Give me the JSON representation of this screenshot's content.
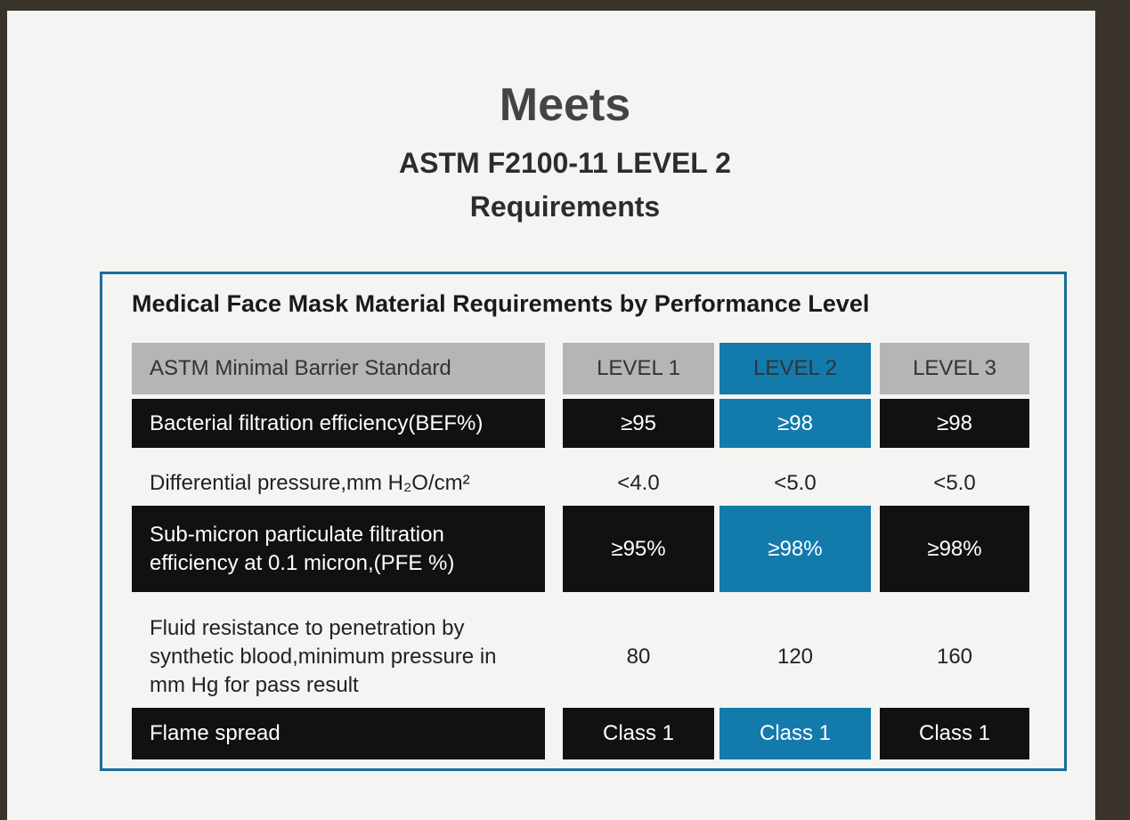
{
  "header": {
    "word": "Meets",
    "title": "ASTM F2100-11 LEVEL 2",
    "subtitle": "Requirements"
  },
  "table": {
    "title": "Medical Face Mask Material Requirements by Performance Level",
    "columns": [
      "ASTM Minimal Barrier Standard",
      "LEVEL 1",
      "LEVEL 2",
      "LEVEL 3"
    ],
    "rows": [
      [
        "Bacterial filtration efficiency(BEF%)",
        "≥95",
        "≥98",
        "≥98"
      ],
      [
        "Differential pressure,mm H₂O/cm²",
        "<4.0",
        "<5.0",
        "<5.0"
      ],
      [
        "Sub-micron particulate filtration efficiency at 0.1 micron,(PFE %)",
        "≥95%",
        "≥98%",
        "≥98%"
      ],
      [
        "Fluid resistance to penetration by synthetic blood,minimum pressure in mm Hg for pass result",
        "80",
        "120",
        "160"
      ],
      [
        "Flame spread",
        "Class 1",
        "Class 1",
        "Class 1"
      ]
    ]
  }
}
